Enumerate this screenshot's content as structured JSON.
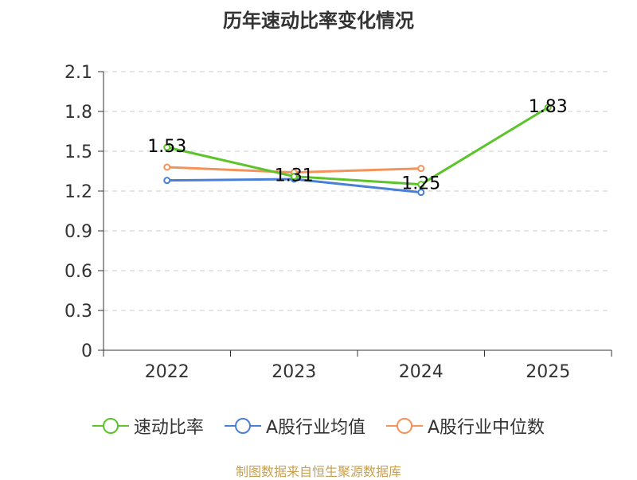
{
  "title": "历年速动比率变化情况",
  "source": "制图数据来自恒生聚源数据库",
  "colors": {
    "axis": "#333333",
    "grid": "#cccccc"
  },
  "chart_data": {
    "type": "line",
    "title": "历年速动比率变化情况",
    "categories": [
      "2022",
      "2023",
      "2024",
      "2025"
    ],
    "ylim": [
      0,
      2.1
    ],
    "yticks": [
      "0",
      "0.3",
      "0.6",
      "0.9",
      "1.2",
      "1.5",
      "1.8",
      "2.1"
    ],
    "grid": true,
    "legend_position": "bottom",
    "series": [
      {
        "name": "速动比率",
        "color": "#5cc32a",
        "values": [
          1.53,
          1.31,
          1.25,
          1.83
        ],
        "labels": [
          "1.53",
          "1.31",
          "1.25",
          "1.83"
        ]
      },
      {
        "name": "A股行业均值",
        "color": "#4a7fd6",
        "values": [
          1.28,
          1.29,
          1.19,
          null
        ]
      },
      {
        "name": "A股行业中位数",
        "color": "#f5925a",
        "values": [
          1.38,
          1.34,
          1.37,
          null
        ]
      }
    ]
  }
}
